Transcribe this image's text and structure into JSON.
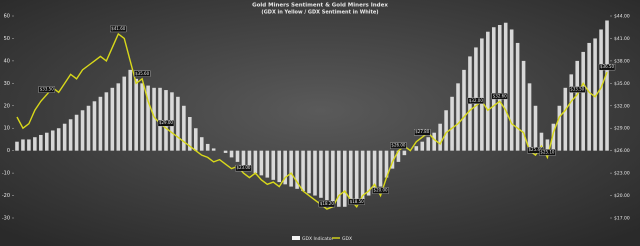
{
  "chart_data": {
    "type": "bar-line",
    "title": "Gold Miners Sentiment & Gold Miners Index",
    "subtitle": "(GDX in Yellow / GDX Sentiment in White)",
    "ylim": [
      -30,
      60
    ],
    "yticks": [
      -30,
      -20,
      -10,
      0,
      10,
      20,
      30,
      40,
      50,
      60
    ],
    "y2lim": [
      17,
      44
    ],
    "y2ticks": [
      {
        "value": 17,
        "label": "$17.00"
      },
      {
        "value": 20,
        "label": "$20.00"
      },
      {
        "value": 23,
        "label": "$23.00"
      },
      {
        "value": 26,
        "label": "$26.00"
      },
      {
        "value": 29,
        "label": "$29.00"
      },
      {
        "value": 32,
        "label": "$32.00"
      },
      {
        "value": 35,
        "label": "$35.00"
      },
      {
        "value": 38,
        "label": "$38.00"
      },
      {
        "value": 41,
        "label": "$41.00"
      },
      {
        "value": 44,
        "label": "$44.00"
      }
    ],
    "series": [
      {
        "name": "GDX Indicator",
        "type": "bar",
        "color": "#f2f2f2",
        "values": [
          4,
          5,
          5,
          6,
          7,
          8,
          9,
          10,
          12,
          14,
          16,
          18,
          20,
          22,
          24,
          26,
          28,
          30,
          33,
          36,
          32,
          30,
          29,
          28,
          28,
          27,
          26,
          24,
          20,
          15,
          10,
          6,
          3,
          1,
          0,
          -1,
          -3,
          -5,
          -7,
          -8,
          -10,
          -11,
          -12,
          -13,
          -14,
          -15,
          -16,
          -17,
          -18,
          -19,
          -20,
          -21,
          -22,
          -24,
          -25,
          -25,
          -24,
          -23,
          -22,
          -20,
          -18,
          -16,
          -12,
          -8,
          -5,
          -2,
          0,
          2,
          4,
          6,
          8,
          12,
          18,
          24,
          30,
          36,
          42,
          46,
          50,
          53,
          55,
          56,
          57,
          54,
          48,
          40,
          30,
          20,
          8,
          5,
          12,
          20,
          28,
          34,
          40,
          44,
          48,
          50,
          54,
          58
        ]
      },
      {
        "name": "GDX",
        "type": "line",
        "axis": "y2",
        "color": "#d8d81a",
        "values": [
          30.5,
          29,
          29.6,
          31.4,
          32.6,
          33.5,
          34.4,
          33.8,
          35,
          36.2,
          35.6,
          36.8,
          37.4,
          38,
          38.6,
          38,
          39.8,
          41.6,
          41,
          38,
          35,
          35.6,
          32.6,
          30.5,
          29.6,
          29,
          28.4,
          27.8,
          27.2,
          26.6,
          26,
          25.4,
          25.1,
          24.5,
          24.8,
          24.2,
          23.6,
          23.9,
          23,
          22.4,
          23,
          22.1,
          21.5,
          21.8,
          21.2,
          22.4,
          23,
          21.8,
          20.6,
          20,
          19.4,
          18.8,
          18.2,
          18.5,
          20,
          20.6,
          19.4,
          18.5,
          20,
          20.6,
          21.5,
          20,
          22.4,
          24.5,
          26,
          26.6,
          26,
          27.2,
          27.8,
          28.4,
          27.5,
          26.9,
          28.4,
          29,
          29.6,
          30.5,
          31.4,
          32,
          32.6,
          31.4,
          32,
          32.6,
          31.4,
          29.6,
          29,
          28.4,
          26,
          25.4,
          26.6,
          25.1,
          28.4,
          30.5,
          31.4,
          32.6,
          33.5,
          35,
          33.8,
          33.2,
          34.4,
          36.5
        ],
        "value_labels": [
          null,
          null,
          null,
          null,
          null,
          "$33.50",
          null,
          null,
          null,
          null,
          null,
          null,
          null,
          null,
          null,
          null,
          null,
          "$41.60",
          null,
          null,
          null,
          "$35.60",
          null,
          null,
          null,
          "$29.00",
          null,
          null,
          null,
          null,
          null,
          null,
          null,
          null,
          null,
          null,
          null,
          null,
          "$23.00",
          null,
          null,
          null,
          null,
          null,
          null,
          null,
          null,
          null,
          null,
          null,
          null,
          null,
          "$18.20",
          null,
          null,
          null,
          null,
          "$18.50",
          null,
          null,
          null,
          "$20.00",
          null,
          null,
          "$26.00",
          null,
          null,
          null,
          "$27.80",
          null,
          null,
          null,
          null,
          null,
          null,
          null,
          null,
          "$32.00",
          null,
          null,
          null,
          "$32.60",
          null,
          null,
          null,
          null,
          null,
          "$25.40",
          null,
          "$25.10",
          null,
          null,
          null,
          null,
          "$33.50",
          null,
          null,
          null,
          null,
          "$36.50"
        ]
      }
    ]
  }
}
